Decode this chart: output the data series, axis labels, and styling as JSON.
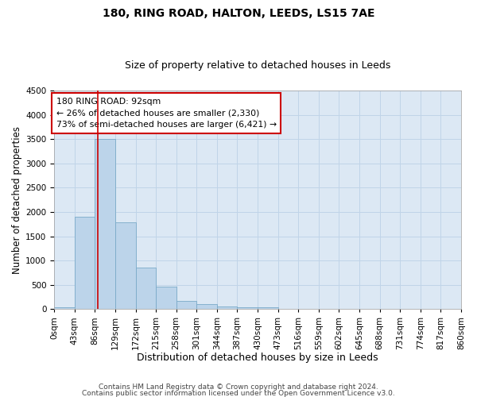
{
  "title1": "180, RING ROAD, HALTON, LEEDS, LS15 7AE",
  "title2": "Size of property relative to detached houses in Leeds",
  "xlabel": "Distribution of detached houses by size in Leeds",
  "ylabel": "Number of detached properties",
  "footer1": "Contains HM Land Registry data © Crown copyright and database right 2024.",
  "footer2": "Contains public sector information licensed under the Open Government Licence v3.0.",
  "property_size": 92,
  "bin_edges": [
    0,
    43,
    86,
    129,
    172,
    215,
    258,
    301,
    344,
    387,
    430,
    473,
    516,
    559,
    602,
    645,
    688,
    731,
    774,
    817,
    860
  ],
  "bar_heights": [
    30,
    1900,
    3500,
    1780,
    850,
    455,
    165,
    95,
    60,
    40,
    30,
    0,
    0,
    0,
    0,
    0,
    0,
    0,
    0,
    0
  ],
  "bar_color": "#bcd4ea",
  "bar_edge_color": "#7aaac8",
  "vline_color": "#cc0000",
  "annotation_line1": "180 RING ROAD: 92sqm",
  "annotation_line2": "← 26% of detached houses are smaller (2,330)",
  "annotation_line3": "73% of semi-detached houses are larger (6,421) →",
  "annotation_box_color": "#cc0000",
  "ylim": [
    0,
    4500
  ],
  "yticks": [
    0,
    500,
    1000,
    1500,
    2000,
    2500,
    3000,
    3500,
    4000,
    4500
  ],
  "grid_color": "#c0d4e8",
  "bg_color": "#dce8f4",
  "title1_fontsize": 10,
  "title2_fontsize": 9,
  "xlabel_fontsize": 9,
  "ylabel_fontsize": 8.5,
  "tick_fontsize": 7.5,
  "footer_fontsize": 6.5
}
